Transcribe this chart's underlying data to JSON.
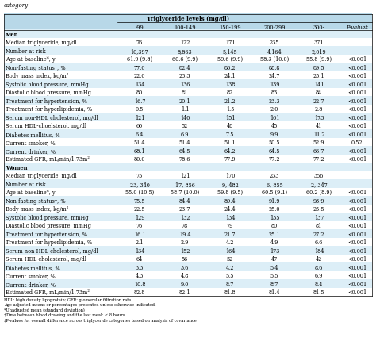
{
  "title": "Triglyceride levels (mg/dl)",
  "columns": [
    "-99",
    "100-149",
    "150-199",
    "200-299",
    "300-",
    "P-value‡"
  ],
  "header_bg": "#b8d8e8",
  "section_bg": "#dceef7",
  "white": "#ffffff",
  "men_section": "Men",
  "women_section": "Women",
  "men_rows": [
    [
      "Median triglyceride, mg/dl",
      "76",
      "122",
      "171",
      "235",
      "371",
      ""
    ],
    [
      "Number at risk",
      "10,397",
      "8,863",
      "5,145",
      "4,164",
      "2,019",
      ""
    ],
    [
      "Age at baseline*, y",
      "61.9 (9.8)",
      "60.6 (9.9)",
      "59.6 (9.9)",
      "58.3 (10.0)",
      "55.8 (9.9)",
      "<0.001"
    ],
    [
      "Non-fasting status†, %",
      "77.0",
      "82.4",
      "86.2",
      "88.8",
      "89.5",
      "<0.001"
    ],
    [
      "Body mass index, kg/m²",
      "22.0",
      "23.3",
      "24.1",
      "24.7",
      "25.1",
      "<0.001"
    ],
    [
      "Systolic blood pressure, mmHg",
      "134",
      "136",
      "138",
      "139",
      "141",
      "<0.001"
    ],
    [
      "Diastolic blood pressure, mmHg",
      "80",
      "81",
      "82",
      "83",
      "84",
      "<0.001"
    ],
    [
      "Treatment for hypertension, %",
      "16.7",
      "20.1",
      "21.2",
      "23.3",
      "22.7",
      "<0.001"
    ],
    [
      "Treatment for hyperlipidemia, %",
      "0.5",
      "1.1",
      "1.5",
      "2.0",
      "2.8",
      "<0.001"
    ],
    [
      "Serum non-HDL cholesterol, mg/dl",
      "121",
      "140",
      "151",
      "161",
      "173",
      "<0.001"
    ],
    [
      "Serum HDL-choelsterol, mg/dl",
      "60",
      "52",
      "48",
      "45",
      "41",
      "<0.001"
    ],
    [
      "Diabetes mellitus, %",
      "6.4",
      "6.9",
      "7.5",
      "9.9",
      "11.2",
      "<0.001"
    ],
    [
      "Current smoker, %",
      "51.4",
      "51.4",
      "51.1",
      "50.5",
      "52.9",
      "0.52"
    ],
    [
      "Current drinker, %",
      "68.1",
      "64.5",
      "64.2",
      "64.5",
      "66.7",
      "<0.001"
    ],
    [
      "Estimated GFR, mL/min/1.73m²",
      "80.0",
      "78.6",
      "77.9",
      "77.2",
      "77.2",
      "<0.001"
    ]
  ],
  "women_rows": [
    [
      "Median triglyceride, mg/dl",
      "75",
      "121",
      "170",
      "233",
      "356",
      ""
    ],
    [
      "Number at risk",
      "23, 340",
      "17, 856",
      "9, 482",
      "6, 855",
      "2, 347",
      ""
    ],
    [
      "Age at baseline*, y",
      "55.0 (10.5)",
      "58.7 (10.0)",
      "59.8 (9.5)",
      "60.5 (9.1)",
      "60.2 (8.9)",
      "<0.001"
    ],
    [
      "Non-fasting status†, %",
      "75.5",
      "84.4",
      "89.4",
      "91.9",
      "93.9",
      "<0.001"
    ],
    [
      "Body mass index, kg/m²",
      "22.5",
      "23.7",
      "24.4",
      "25.0",
      "25.5",
      "<0.001"
    ],
    [
      "Systolic blood pressure, mmHg",
      "129",
      "132",
      "134",
      "135",
      "137",
      "<0.001"
    ],
    [
      "Diastolic blood pressure, mmHg",
      "76",
      "78",
      "79",
      "80",
      "81",
      "<0.001"
    ],
    [
      "Treatment for hypertension, %",
      "16.1",
      "19.4",
      "21.7",
      "25.1",
      "27.2",
      "<0.001"
    ],
    [
      "Treatment for hyperlipidemia, %",
      "2.1",
      "2.9",
      "4.2",
      "4.9",
      "6.6",
      "<0.001"
    ],
    [
      "Serum non-HDL cholesterol, mg/dl",
      "134",
      "152",
      "164",
      "173",
      "184",
      "<0.001"
    ],
    [
      "Serum HDL cholesterol, mg/dl",
      "64",
      "56",
      "52",
      "47",
      "42",
      "<0.001"
    ],
    [
      "Diabetes mellitus, %",
      "3.3",
      "3.6",
      "4.2",
      "5.4",
      "8.6",
      "<0.001"
    ],
    [
      "Current smoker, %",
      "4.3",
      "4.8",
      "5.5",
      "5.5",
      "6.9",
      "<0.001"
    ],
    [
      "Current drinker, %",
      "10.8",
      "9.0",
      "8.7",
      "8.7",
      "8.4",
      "<0.001"
    ],
    [
      "Estimated GFR, mL/min/1.73m²",
      "82.8",
      "82.1",
      "81.8",
      "81.4",
      "81.5",
      "<0.001"
    ]
  ],
  "footnotes": [
    "HDL: high density lipoprotein; GFR: glomerular filtration rate",
    "Age-adjusted means or percentages presented unless otherwise indicated.",
    "*Unadjusted mean (standard deviation)",
    "†Time between blood drawing and the last meal: < 8 hours.",
    "‡P-values for overall difference across triglyceride categories based on analysis of covariance"
  ]
}
